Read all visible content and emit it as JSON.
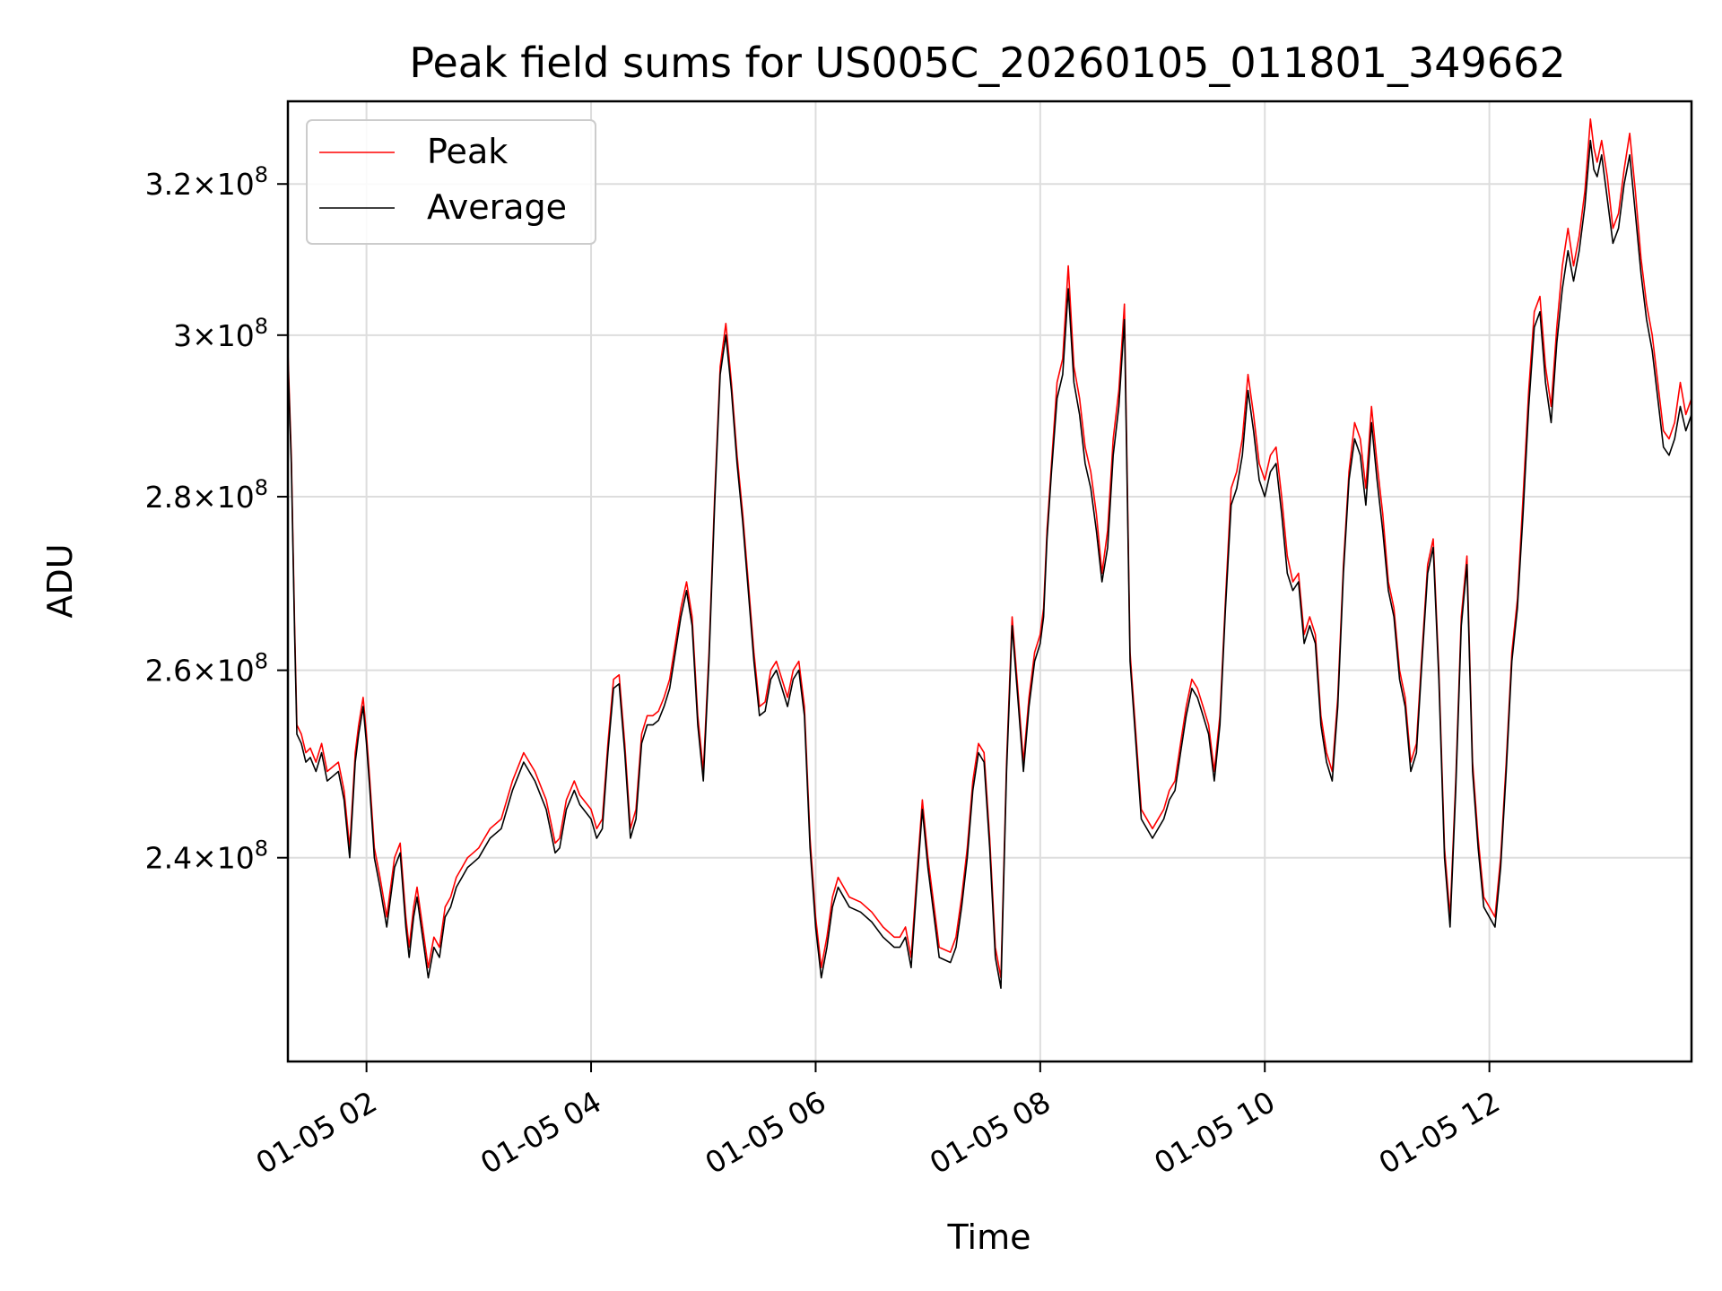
{
  "chart_data": {
    "type": "line",
    "title": "Peak field sums for US005C_20260105_011801_349662",
    "xlabel": "Time",
    "ylabel": "ADU",
    "x_unit": "hours on 2026-01-05",
    "xlim": [
      1.3,
      13.8
    ],
    "ylim": [
      220000000,
      331500000
    ],
    "y_scale": "log",
    "grid": true,
    "legend_position": "upper-left",
    "xticks": [
      {
        "value": 2,
        "label": "01-05 02"
      },
      {
        "value": 4,
        "label": "01-05 04"
      },
      {
        "value": 6,
        "label": "01-05 06"
      },
      {
        "value": 8,
        "label": "01-05 08"
      },
      {
        "value": 10,
        "label": "01-05 10"
      },
      {
        "value": 12,
        "label": "01-05 12"
      }
    ],
    "yticks": [
      {
        "value": 240000000,
        "mantissa": "2.4",
        "base": "10",
        "exp": "8"
      },
      {
        "value": 260000000,
        "mantissa": "2.6",
        "base": "10",
        "exp": "8"
      },
      {
        "value": 280000000,
        "mantissa": "2.8",
        "base": "10",
        "exp": "8"
      },
      {
        "value": 300000000,
        "mantissa": "3",
        "base": "10",
        "exp": "8"
      },
      {
        "value": 320000000,
        "mantissa": "3.2",
        "base": "10",
        "exp": "8"
      }
    ],
    "x": [
      1.3,
      1.33,
      1.36,
      1.38,
      1.42,
      1.46,
      1.5,
      1.55,
      1.6,
      1.65,
      1.7,
      1.75,
      1.8,
      1.85,
      1.9,
      1.93,
      1.97,
      2.0,
      2.03,
      2.07,
      2.12,
      2.18,
      2.25,
      2.3,
      2.35,
      2.38,
      2.42,
      2.45,
      2.5,
      2.55,
      2.6,
      2.65,
      2.7,
      2.75,
      2.8,
      2.85,
      2.9,
      2.95,
      3.0,
      3.05,
      3.1,
      3.2,
      3.3,
      3.4,
      3.5,
      3.6,
      3.68,
      3.72,
      3.78,
      3.85,
      3.9,
      4.0,
      4.05,
      4.1,
      4.15,
      4.2,
      4.25,
      4.3,
      4.35,
      4.4,
      4.45,
      4.5,
      4.55,
      4.6,
      4.65,
      4.7,
      4.8,
      4.85,
      4.9,
      4.95,
      5.0,
      5.05,
      5.1,
      5.15,
      5.2,
      5.25,
      5.3,
      5.35,
      5.4,
      5.45,
      5.5,
      5.55,
      5.6,
      5.65,
      5.7,
      5.75,
      5.8,
      5.85,
      5.9,
      5.95,
      6.0,
      6.05,
      6.1,
      6.15,
      6.2,
      6.3,
      6.4,
      6.5,
      6.6,
      6.7,
      6.75,
      6.8,
      6.85,
      6.9,
      6.95,
      7.0,
      7.1,
      7.2,
      7.25,
      7.3,
      7.35,
      7.4,
      7.45,
      7.5,
      7.55,
      7.6,
      7.65,
      7.7,
      7.75,
      7.8,
      7.85,
      7.9,
      7.95,
      8.0,
      8.03,
      8.06,
      8.1,
      8.15,
      8.2,
      8.25,
      8.3,
      8.35,
      8.4,
      8.45,
      8.5,
      8.55,
      8.6,
      8.65,
      8.7,
      8.75,
      8.8,
      8.9,
      9.0,
      9.1,
      9.15,
      9.2,
      9.25,
      9.3,
      9.35,
      9.4,
      9.45,
      9.5,
      9.55,
      9.6,
      9.65,
      9.7,
      9.75,
      9.8,
      9.85,
      9.9,
      9.95,
      10.0,
      10.05,
      10.1,
      10.15,
      10.2,
      10.25,
      10.3,
      10.35,
      10.4,
      10.45,
      10.5,
      10.55,
      10.6,
      10.65,
      10.7,
      10.75,
      10.8,
      10.85,
      10.9,
      10.95,
      11.0,
      11.05,
      11.1,
      11.15,
      11.2,
      11.25,
      11.3,
      11.35,
      11.4,
      11.45,
      11.5,
      11.55,
      11.6,
      11.65,
      11.7,
      11.75,
      11.8,
      11.85,
      11.9,
      11.95,
      12.0,
      12.05,
      12.1,
      12.15,
      12.2,
      12.25,
      12.3,
      12.35,
      12.4,
      12.45,
      12.5,
      12.55,
      12.6,
      12.65,
      12.7,
      12.75,
      12.8,
      12.85,
      12.9,
      12.93,
      12.96,
      13.0,
      13.05,
      13.1,
      13.15,
      13.2,
      13.25,
      13.3,
      13.35,
      13.4,
      13.45,
      13.5,
      13.55,
      13.6,
      13.65,
      13.7,
      13.75,
      13.8
    ],
    "series": [
      {
        "name": "Peak",
        "color": "#ff0000",
        "values": [
          298000000,
          285000000,
          265000000,
          254000000,
          253000000,
          251000000,
          251500000,
          250000000,
          252000000,
          249000000,
          249500000,
          250000000,
          247000000,
          241000000,
          251000000,
          254000000,
          257000000,
          253000000,
          248000000,
          241000000,
          238000000,
          234000000,
          240000000,
          241500000,
          234000000,
          231000000,
          235000000,
          237000000,
          233000000,
          229000000,
          232000000,
          231000000,
          235000000,
          236000000,
          238000000,
          239000000,
          240000000,
          240500000,
          241000000,
          242000000,
          243000000,
          244000000,
          248000000,
          251000000,
          249000000,
          246000000,
          241500000,
          242000000,
          246000000,
          248000000,
          246500000,
          245000000,
          243000000,
          244000000,
          252000000,
          259000000,
          259500000,
          252000000,
          243000000,
          245000000,
          253000000,
          255000000,
          255000000,
          255500000,
          257000000,
          259000000,
          267000000,
          270000000,
          266000000,
          255000000,
          249000000,
          262000000,
          280000000,
          296000000,
          301500000,
          294000000,
          285000000,
          278000000,
          270000000,
          262000000,
          256000000,
          256500000,
          260000000,
          261000000,
          259000000,
          257000000,
          260000000,
          261000000,
          256000000,
          242000000,
          234000000,
          229000000,
          232000000,
          236000000,
          238000000,
          236000000,
          235500000,
          234500000,
          233000000,
          232000000,
          232000000,
          233000000,
          230000000,
          238000000,
          246000000,
          240000000,
          231000000,
          230500000,
          232000000,
          236000000,
          241000000,
          248000000,
          252000000,
          251000000,
          242000000,
          231000000,
          228000000,
          250000000,
          266000000,
          258000000,
          250000000,
          257000000,
          262000000,
          264000000,
          267000000,
          276000000,
          284000000,
          294000000,
          297000000,
          309000000,
          296000000,
          292000000,
          286000000,
          283000000,
          278000000,
          271000000,
          276000000,
          287000000,
          293000000,
          304000000,
          262000000,
          245000000,
          243000000,
          245000000,
          247000000,
          248000000,
          252000000,
          256000000,
          259000000,
          258000000,
          256000000,
          254000000,
          249000000,
          255000000,
          268000000,
          281000000,
          283000000,
          287000000,
          295000000,
          290000000,
          284000000,
          282000000,
          285000000,
          286000000,
          280000000,
          273000000,
          270000000,
          271000000,
          264000000,
          266000000,
          264000000,
          255000000,
          251000000,
          249000000,
          257000000,
          272000000,
          283000000,
          289000000,
          287000000,
          281000000,
          291000000,
          284000000,
          278000000,
          270000000,
          267000000,
          260000000,
          257000000,
          250000000,
          252000000,
          262000000,
          272000000,
          275000000,
          260000000,
          241000000,
          234000000,
          248000000,
          266000000,
          273000000,
          250000000,
          242000000,
          236000000,
          235000000,
          234000000,
          240000000,
          250000000,
          262000000,
          268000000,
          280000000,
          293000000,
          303000000,
          305000000,
          296000000,
          291000000,
          301000000,
          309000000,
          314000000,
          309000000,
          313000000,
          319000000,
          329000000,
          325000000,
          323000000,
          326000000,
          321000000,
          314000000,
          316000000,
          322000000,
          327000000,
          319000000,
          310000000,
          304000000,
          300000000,
          294000000,
          288000000,
          287000000,
          289000000,
          294000000,
          290000000,
          292000000
        ]
      },
      {
        "name": "Average",
        "color": "#000000",
        "values": [
          297000000,
          284000000,
          264000000,
          253000000,
          252000000,
          250000000,
          250500000,
          249000000,
          251000000,
          248000000,
          248500000,
          249000000,
          246000000,
          240000000,
          250000000,
          253000000,
          256000000,
          252000000,
          247000000,
          240000000,
          237000000,
          233000000,
          239000000,
          240500000,
          233000000,
          230000000,
          234000000,
          236000000,
          232000000,
          228000000,
          231000000,
          230000000,
          234000000,
          235000000,
          237000000,
          238000000,
          239000000,
          239500000,
          240000000,
          241000000,
          242000000,
          243000000,
          247000000,
          250000000,
          248000000,
          245000000,
          240500000,
          241000000,
          245000000,
          247000000,
          245500000,
          244000000,
          242000000,
          243000000,
          251000000,
          258000000,
          258500000,
          251000000,
          242000000,
          244000000,
          252000000,
          254000000,
          254000000,
          254500000,
          256000000,
          258000000,
          266000000,
          269000000,
          265000000,
          254000000,
          248000000,
          261000000,
          279000000,
          295000000,
          300000000,
          293000000,
          284000000,
          277000000,
          269000000,
          261000000,
          255000000,
          255500000,
          259000000,
          260000000,
          258000000,
          256000000,
          259000000,
          260000000,
          255000000,
          241000000,
          233000000,
          228000000,
          231000000,
          235000000,
          237000000,
          235000000,
          234500000,
          233500000,
          232000000,
          231000000,
          231000000,
          232000000,
          229000000,
          237000000,
          245000000,
          239000000,
          230000000,
          229500000,
          231000000,
          235000000,
          240000000,
          247000000,
          251000000,
          250000000,
          241000000,
          230000000,
          227000000,
          249000000,
          265000000,
          257000000,
          249000000,
          256000000,
          261000000,
          263000000,
          266000000,
          275000000,
          283000000,
          292000000,
          295000000,
          306000000,
          294000000,
          290000000,
          284000000,
          281000000,
          276000000,
          270000000,
          274000000,
          285000000,
          291000000,
          302000000,
          261000000,
          244000000,
          242000000,
          244000000,
          246000000,
          247000000,
          251000000,
          255000000,
          258000000,
          257000000,
          255000000,
          253000000,
          248000000,
          254000000,
          267000000,
          279000000,
          281000000,
          285000000,
          293000000,
          288000000,
          282000000,
          280000000,
          283000000,
          284000000,
          278000000,
          271000000,
          269000000,
          270000000,
          263000000,
          265000000,
          263000000,
          254000000,
          250000000,
          248000000,
          256000000,
          271000000,
          282000000,
          287000000,
          285000000,
          279000000,
          289000000,
          282000000,
          276000000,
          269000000,
          266000000,
          259000000,
          256000000,
          249000000,
          251000000,
          261000000,
          271000000,
          274000000,
          259000000,
          240000000,
          233000000,
          247000000,
          265000000,
          272000000,
          249000000,
          241000000,
          235000000,
          234000000,
          233000000,
          239000000,
          249000000,
          261000000,
          267000000,
          278000000,
          291000000,
          301000000,
          303000000,
          294000000,
          289000000,
          299000000,
          306000000,
          311000000,
          307000000,
          311000000,
          317000000,
          326000000,
          322000000,
          321000000,
          324000000,
          318000000,
          312000000,
          314000000,
          320000000,
          324000000,
          316000000,
          308000000,
          302000000,
          298000000,
          292000000,
          286000000,
          285000000,
          287000000,
          291000000,
          288000000,
          290000000
        ]
      }
    ]
  }
}
